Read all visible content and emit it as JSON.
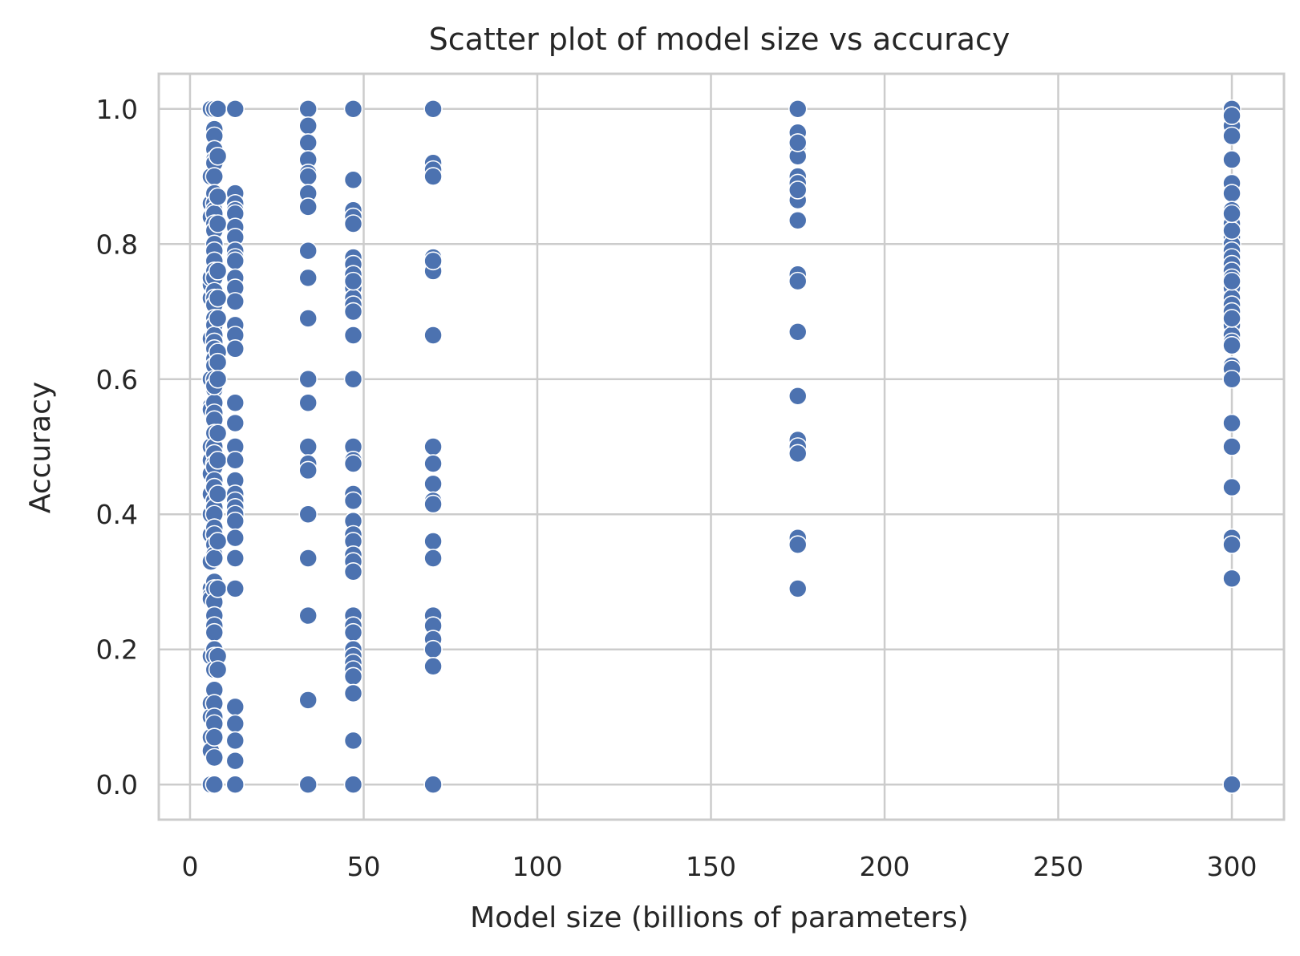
{
  "chart_data": {
    "type": "scatter",
    "title": "Scatter plot of model size vs accuracy",
    "xlabel": "Model size (billions of parameters)",
    "ylabel": "Accuracy",
    "xlim": [
      -9,
      315
    ],
    "ylim": [
      -0.052,
      1.052
    ],
    "xticks": [
      0,
      50,
      100,
      150,
      200,
      250,
      300
    ],
    "yticks": [
      0.0,
      0.2,
      0.4,
      0.6,
      0.8,
      1.0
    ],
    "ytick_labels": [
      "0.0",
      "0.2",
      "0.4",
      "0.6",
      "0.8",
      "1.0"
    ],
    "grid": true,
    "marker_color": "#4c72b0",
    "series": [
      {
        "x": [
          6,
          6,
          6,
          6,
          6,
          6,
          6,
          6,
          6,
          6,
          6,
          6,
          6,
          6,
          6,
          6,
          6,
          6,
          6,
          6,
          6,
          6,
          6,
          6,
          6,
          6,
          6,
          6
        ],
        "y": [
          1.0,
          0.9,
          0.86,
          0.84,
          0.75,
          0.74,
          0.72,
          0.66,
          0.6,
          0.56,
          0.555,
          0.5,
          0.48,
          0.46,
          0.43,
          0.4,
          0.37,
          0.33,
          0.29,
          0.28,
          0.275,
          0.19,
          0.12,
          0.1,
          0.07,
          0.05,
          0.0,
          0.75
        ]
      },
      {
        "x": [
          7,
          7,
          7,
          7,
          7,
          7,
          7,
          7,
          7,
          7,
          7,
          7,
          7,
          7,
          7,
          7,
          7,
          7,
          7,
          7,
          7,
          7,
          7,
          7,
          7,
          7,
          7,
          7,
          7,
          7,
          7,
          7,
          7,
          7,
          7,
          7,
          7,
          7,
          7,
          7,
          7,
          7,
          7,
          7,
          7,
          7,
          7,
          7,
          7,
          7,
          7,
          7,
          7,
          7,
          7,
          7,
          7,
          7,
          7,
          7,
          7,
          7,
          7,
          7,
          7
        ],
        "y": [
          1.0,
          0.97,
          0.96,
          0.94,
          0.925,
          0.92,
          0.9,
          0.875,
          0.86,
          0.85,
          0.845,
          0.83,
          0.82,
          0.8,
          0.79,
          0.775,
          0.76,
          0.75,
          0.73,
          0.72,
          0.71,
          0.69,
          0.68,
          0.665,
          0.655,
          0.645,
          0.63,
          0.62,
          0.6,
          0.585,
          0.565,
          0.55,
          0.54,
          0.52,
          0.5,
          0.49,
          0.475,
          0.47,
          0.45,
          0.44,
          0.42,
          0.41,
          0.4,
          0.38,
          0.37,
          0.355,
          0.34,
          0.335,
          0.3,
          0.29,
          0.27,
          0.25,
          0.235,
          0.225,
          0.2,
          0.19,
          0.17,
          0.14,
          0.12,
          0.1,
          0.09,
          0.07,
          0.04,
          0.0,
          0.59
        ]
      },
      {
        "x": [
          8,
          8,
          8,
          8,
          8,
          8,
          8,
          8,
          8,
          8,
          8,
          8,
          8,
          8,
          8,
          8,
          8
        ],
        "y": [
          1.0,
          0.93,
          0.87,
          0.83,
          0.76,
          0.72,
          0.69,
          0.64,
          0.625,
          0.6,
          0.52,
          0.48,
          0.43,
          0.36,
          0.29,
          0.19,
          0.17
        ]
      },
      {
        "x": [
          13,
          13,
          13,
          13,
          13,
          13,
          13,
          13,
          13,
          13,
          13,
          13,
          13,
          13,
          13,
          13,
          13,
          13,
          13,
          13,
          13,
          13,
          13,
          13,
          13,
          13,
          13,
          13,
          13,
          13,
          13,
          13,
          13,
          13
        ],
        "y": [
          1.0,
          0.875,
          0.86,
          0.85,
          0.845,
          0.825,
          0.81,
          0.79,
          0.78,
          0.775,
          0.75,
          0.735,
          0.715,
          0.68,
          0.665,
          0.645,
          0.565,
          0.535,
          0.5,
          0.48,
          0.45,
          0.43,
          0.42,
          0.41,
          0.4,
          0.39,
          0.365,
          0.335,
          0.29,
          0.115,
          0.09,
          0.065,
          0.035,
          0.0
        ]
      },
      {
        "x": [
          34,
          34,
          34,
          34,
          34,
          34,
          34,
          34,
          34,
          34,
          34,
          34,
          34,
          34,
          34,
          34,
          34,
          34,
          34,
          34,
          34
        ],
        "y": [
          1.0,
          0.975,
          0.95,
          0.925,
          0.905,
          0.9,
          0.875,
          0.855,
          0.79,
          0.75,
          0.69,
          0.6,
          0.565,
          0.5,
          0.475,
          0.465,
          0.4,
          0.335,
          0.25,
          0.125,
          0.0
        ]
      },
      {
        "x": [
          47,
          47,
          47,
          47,
          47,
          47,
          47,
          47,
          47,
          47,
          47,
          47,
          47,
          47,
          47,
          47,
          47,
          47,
          47,
          47,
          47,
          47,
          47,
          47,
          47,
          47,
          47,
          47,
          47,
          47,
          47,
          47,
          47,
          47,
          47,
          47,
          47
        ],
        "y": [
          1.0,
          0.895,
          0.85,
          0.84,
          0.83,
          0.78,
          0.77,
          0.755,
          0.735,
          0.72,
          0.71,
          0.7,
          0.665,
          0.6,
          0.5,
          0.48,
          0.475,
          0.43,
          0.42,
          0.39,
          0.37,
          0.36,
          0.34,
          0.33,
          0.315,
          0.25,
          0.235,
          0.225,
          0.2,
          0.19,
          0.18,
          0.17,
          0.16,
          0.135,
          0.065,
          0.0,
          0.745
        ]
      },
      {
        "x": [
          70,
          70,
          70,
          70,
          70,
          70,
          70,
          70,
          70,
          70,
          70,
          70,
          70,
          70,
          70,
          70,
          70,
          70,
          70,
          70,
          70
        ],
        "y": [
          1.0,
          0.92,
          0.91,
          0.9,
          0.78,
          0.76,
          0.665,
          0.5,
          0.475,
          0.445,
          0.42,
          0.415,
          0.36,
          0.335,
          0.25,
          0.235,
          0.215,
          0.2,
          0.175,
          0.0,
          0.775
        ]
      },
      {
        "x": [
          175,
          175,
          175,
          175,
          175,
          175,
          175,
          175,
          175,
          175,
          175,
          175,
          175,
          175,
          175,
          175,
          175,
          175,
          175,
          175
        ],
        "y": [
          1.0,
          0.965,
          0.945,
          0.93,
          0.9,
          0.89,
          0.865,
          0.835,
          0.755,
          0.745,
          0.67,
          0.575,
          0.51,
          0.5,
          0.49,
          0.365,
          0.355,
          0.29,
          0.88,
          0.95
        ]
      },
      {
        "x": [
          300,
          300,
          300,
          300,
          300,
          300,
          300,
          300,
          300,
          300,
          300,
          300,
          300,
          300,
          300,
          300,
          300,
          300,
          300,
          300,
          300,
          300,
          300,
          300,
          300,
          300,
          300,
          300,
          300,
          300,
          300,
          300,
          300,
          300,
          300,
          300,
          300,
          300,
          300,
          300
        ],
        "y": [
          1.0,
          0.985,
          0.975,
          0.96,
          0.925,
          0.89,
          0.875,
          0.85,
          0.84,
          0.83,
          0.81,
          0.8,
          0.79,
          0.78,
          0.77,
          0.76,
          0.75,
          0.735,
          0.72,
          0.71,
          0.7,
          0.68,
          0.665,
          0.655,
          0.65,
          0.62,
          0.615,
          0.6,
          0.535,
          0.5,
          0.44,
          0.365,
          0.355,
          0.305,
          0.0,
          0.745,
          0.82,
          0.845,
          0.69,
          0.99
        ]
      }
    ]
  }
}
